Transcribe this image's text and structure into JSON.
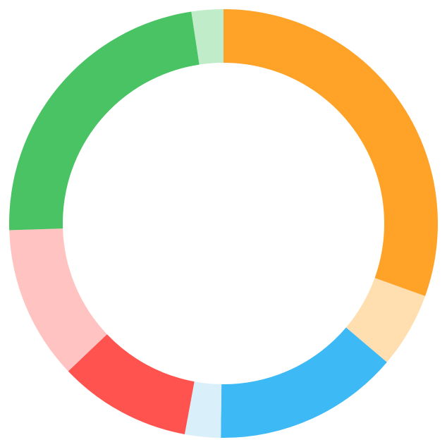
{
  "chart_data": {
    "type": "pie",
    "variant": "donut",
    "start_angle_deg": 0,
    "direction": "clockwise",
    "segments": [
      {
        "value": 30.5,
        "color": "#FFA328"
      },
      {
        "value": 5.7,
        "color": "#FFDEB0"
      },
      {
        "value": 14.0,
        "color": "#3DB9F5"
      },
      {
        "value": 2.7,
        "color": "#D9F0FB"
      },
      {
        "value": 10.0,
        "color": "#FF534F"
      },
      {
        "value": 11.6,
        "color": "#FFC4C2"
      },
      {
        "value": 23.1,
        "color": "#4AC364"
      },
      {
        "value": 2.4,
        "color": "#C0ECC9"
      }
    ]
  }
}
